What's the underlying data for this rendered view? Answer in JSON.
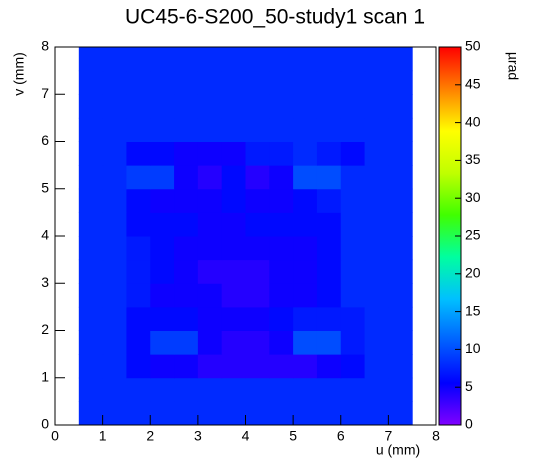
{
  "chart_data": {
    "type": "heatmap",
    "title": "UC45-6-S200_50-study1 scan 1",
    "x_label": "u (mm)",
    "y_label": "v (mm)",
    "colorbar_label": "µrad",
    "xlim": [
      0,
      8
    ],
    "ylim": [
      0,
      8
    ],
    "xticks": [
      0,
      1,
      2,
      3,
      4,
      5,
      6,
      7,
      8
    ],
    "yticks": [
      0,
      1,
      2,
      3,
      4,
      5,
      6,
      7,
      8
    ],
    "x": [
      0,
      0.5,
      1,
      1.5,
      2,
      2.5,
      3,
      3.5,
      4,
      4.5,
      5,
      5.5,
      6,
      6.5,
      7,
      7.5,
      8
    ],
    "y": [
      0,
      0.5,
      1,
      1.5,
      2,
      2.5,
      3,
      3.5,
      4,
      4.5,
      5,
      5.5,
      6,
      6.5,
      7,
      7.5,
      8
    ],
    "z": [
      [
        null,
        8,
        8,
        8,
        8,
        8,
        8,
        8,
        8,
        8,
        8,
        8,
        8,
        8,
        8,
        null
      ],
      [
        null,
        8,
        8,
        8,
        8,
        8,
        8,
        8,
        8,
        8,
        8,
        8,
        8,
        8,
        8,
        null
      ],
      [
        null,
        8,
        8,
        6,
        5,
        5,
        4,
        4,
        4,
        4,
        4,
        5,
        6,
        8,
        8,
        null
      ],
      [
        null,
        8,
        8,
        6,
        9,
        9,
        5,
        4,
        4,
        5,
        10,
        10,
        7,
        8,
        8,
        null
      ],
      [
        null,
        8,
        8,
        6,
        6,
        6,
        5,
        5,
        5,
        6,
        7,
        7,
        7,
        8,
        8,
        null
      ],
      [
        null,
        8,
        8,
        7,
        5,
        5,
        5,
        4,
        4,
        5,
        5,
        6,
        8,
        8,
        8,
        null
      ],
      [
        null,
        8,
        8,
        7,
        6,
        5,
        4,
        4,
        4,
        5,
        5,
        6,
        8,
        8,
        8,
        null
      ],
      [
        null,
        8,
        8,
        7,
        6,
        5,
        5,
        5,
        5,
        5,
        5,
        6,
        8,
        8,
        8,
        null
      ],
      [
        null,
        8,
        8,
        6,
        6,
        6,
        5,
        5,
        6,
        6,
        6,
        6,
        8,
        8,
        8,
        null
      ],
      [
        null,
        8,
        8,
        6,
        5,
        5,
        5,
        6,
        5,
        5,
        6,
        7,
        8,
        8,
        8,
        null
      ],
      [
        null,
        8,
        8,
        9,
        9,
        5,
        4,
        6,
        4,
        5,
        10,
        10,
        8,
        8,
        8,
        null
      ],
      [
        null,
        8,
        8,
        6,
        6,
        5,
        5,
        5,
        7,
        7,
        8,
        7,
        6,
        8,
        8,
        null
      ],
      [
        null,
        8,
        8,
        8,
        8,
        8,
        8,
        8,
        8,
        8,
        8,
        8,
        8,
        8,
        8,
        null
      ],
      [
        null,
        8,
        8,
        8,
        8,
        8,
        8,
        8,
        8,
        8,
        8,
        8,
        8,
        8,
        8,
        null
      ],
      [
        null,
        8,
        8,
        8,
        8,
        8,
        8,
        8,
        8,
        8,
        8,
        8,
        8,
        8,
        8,
        null
      ],
      [
        null,
        8,
        8,
        8,
        8,
        8,
        8,
        8,
        8,
        8,
        8,
        8,
        8,
        8,
        8,
        null
      ]
    ],
    "zlim": [
      0,
      50
    ],
    "zticks": [
      0,
      5,
      10,
      15,
      20,
      25,
      30,
      35,
      40,
      45,
      50
    ],
    "colormap": [
      "#8000ff",
      "#0000ff",
      "#0060ff",
      "#00c0ff",
      "#00ffa0",
      "#40ff00",
      "#c0ff00",
      "#ffff00",
      "#ff8000",
      "#ff0000"
    ]
  }
}
